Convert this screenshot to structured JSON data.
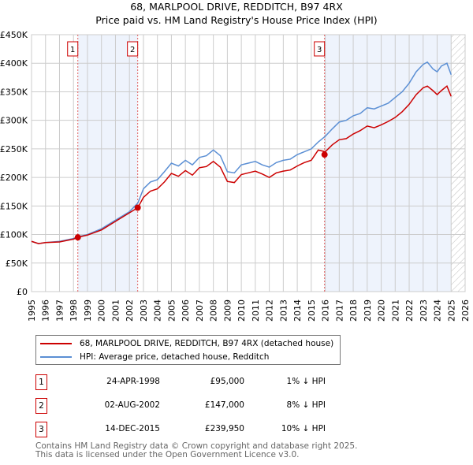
{
  "chart_data": {
    "type": "line",
    "title": "68, MARLPOOL DRIVE, REDDITCH, B97 4RX",
    "subtitle": "Price paid vs. HM Land Registry's House Price Index (HPI)",
    "xlabel": "",
    "ylabel": "",
    "xlim": [
      1995,
      2026
    ],
    "ylim": [
      0,
      450000
    ],
    "grid": true,
    "y_ticks": [
      "£0",
      "£50K",
      "£100K",
      "£150K",
      "£200K",
      "£250K",
      "£300K",
      "£350K",
      "£400K",
      "£450K"
    ],
    "x_ticks": [
      "1995",
      "1996",
      "1997",
      "1998",
      "1999",
      "2000",
      "2001",
      "2002",
      "2003",
      "2004",
      "2005",
      "2006",
      "2007",
      "2008",
      "2009",
      "2010",
      "2011",
      "2012",
      "2013",
      "2014",
      "2015",
      "2016",
      "2017",
      "2018",
      "2019",
      "2020",
      "2021",
      "2022",
      "2023",
      "2024",
      "2025",
      "2026"
    ],
    "x": [
      1995,
      1995.5,
      1996,
      1997,
      1998,
      1998.3,
      1999,
      2000,
      2001,
      2002,
      2002.6,
      2003,
      2003.5,
      2004,
      2004.5,
      2005,
      2005.5,
      2006,
      2006.5,
      2007,
      2007.5,
      2008,
      2008.5,
      2009,
      2009.5,
      2010,
      2010.5,
      2011,
      2011.5,
      2012,
      2012.5,
      2013,
      2013.5,
      2014,
      2014.5,
      2015,
      2015.5,
      2016,
      2016.5,
      2017,
      2017.5,
      2018,
      2018.5,
      2019,
      2019.5,
      2020,
      2020.5,
      2021,
      2021.5,
      2022,
      2022.5,
      2023,
      2023.3,
      2023.7,
      2024,
      2024.3,
      2024.7,
      2025
    ],
    "series": [
      {
        "name": "68, MARLPOOL DRIVE, REDDITCH, B97 4RX (detached house)",
        "color": "#cc0000",
        "values": [
          88,
          84,
          86,
          87,
          92,
          95,
          99,
          108,
          123,
          138,
          147,
          165,
          176,
          180,
          192,
          207,
          202,
          212,
          204,
          217,
          219,
          228,
          218,
          193,
          191,
          205,
          208,
          211,
          206,
          200,
          208,
          211,
          213,
          220,
          226,
          230,
          248,
          245,
          257,
          266,
          268,
          276,
          282,
          290,
          287,
          292,
          298,
          305,
          315,
          328,
          345,
          357,
          360,
          352,
          345,
          352,
          360,
          342
        ]
      },
      {
        "name": "HPI: Average price, detached house, Redditch",
        "color": "#5b8fd4",
        "values": [
          88,
          84,
          86,
          88,
          93,
          96,
          100,
          110,
          125,
          140,
          155,
          180,
          192,
          196,
          210,
          225,
          220,
          230,
          222,
          235,
          238,
          248,
          238,
          210,
          208,
          222,
          225,
          228,
          222,
          218,
          226,
          230,
          232,
          240,
          245,
          250,
          262,
          272,
          285,
          297,
          300,
          308,
          312,
          322,
          320,
          325,
          330,
          340,
          350,
          365,
          385,
          398,
          402,
          390,
          385,
          395,
          400,
          380
        ]
      }
    ],
    "value_units": "£K",
    "sales": [
      {
        "label": "1",
        "x": 1998.31,
        "value": 95,
        "date": "24-APR-1998",
        "price": "£95,000",
        "hpi": "1% ↓ HPI"
      },
      {
        "label": "2",
        "x": 2002.59,
        "value": 147,
        "date": "02-AUG-2002",
        "price": "£147,000",
        "hpi": "8% ↓ HPI"
      },
      {
        "label": "3",
        "x": 2015.95,
        "value": 239.95,
        "date": "14-DEC-2015",
        "price": "£239,950",
        "hpi": "10% ↓ HPI"
      }
    ],
    "shaded_ranges": [
      [
        1998.31,
        2002.59
      ],
      [
        2015.95,
        2025
      ]
    ],
    "forecast_from": 2025
  },
  "footer": {
    "line1": "Contains HM Land Registry data © Crown copyright and database right 2025.",
    "line2": "This data is licensed under the Open Government Licence v3.0."
  }
}
